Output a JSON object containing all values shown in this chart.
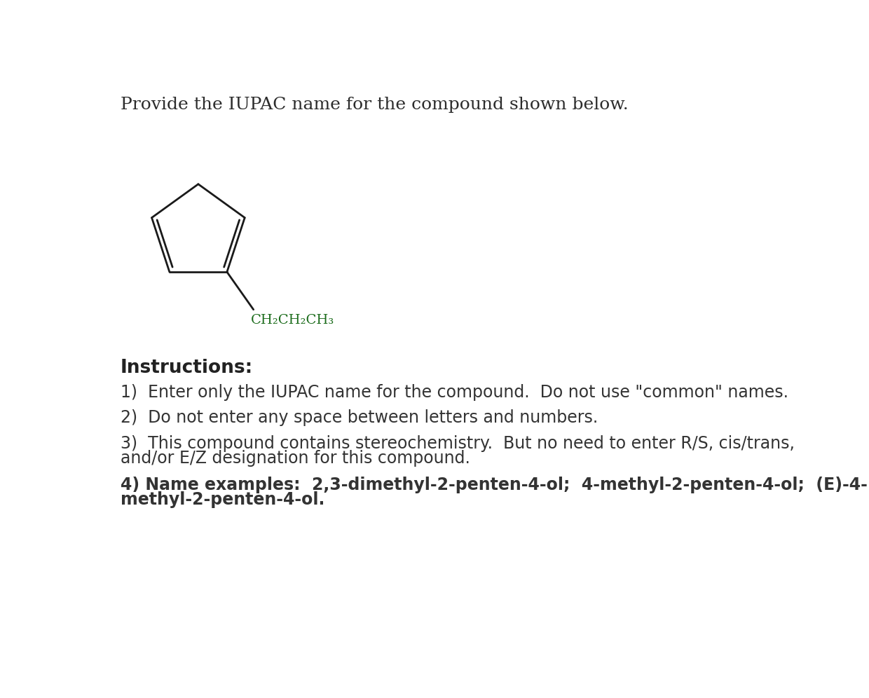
{
  "background_color": "#ffffff",
  "title_text": "Provide the IUPAC name for the compound shown below.",
  "title_color": "#2c2c2c",
  "title_fontsize": 18,
  "title_font": "DejaVu Serif",
  "instructions_header": "Instructions:",
  "instructions_header_color": "#222222",
  "instructions_header_fontsize": 19,
  "instructions_font": "DejaVu Sans",
  "instructions_color": "#333333",
  "instructions_fontsize": 17,
  "molecule_color": "#1a1a1a",
  "molecule_linewidth": 2.0,
  "sub_label": "CH₂CH₂CH₃",
  "sub_label_fontsize": 14,
  "sub_label_color": "#1a6b1a"
}
